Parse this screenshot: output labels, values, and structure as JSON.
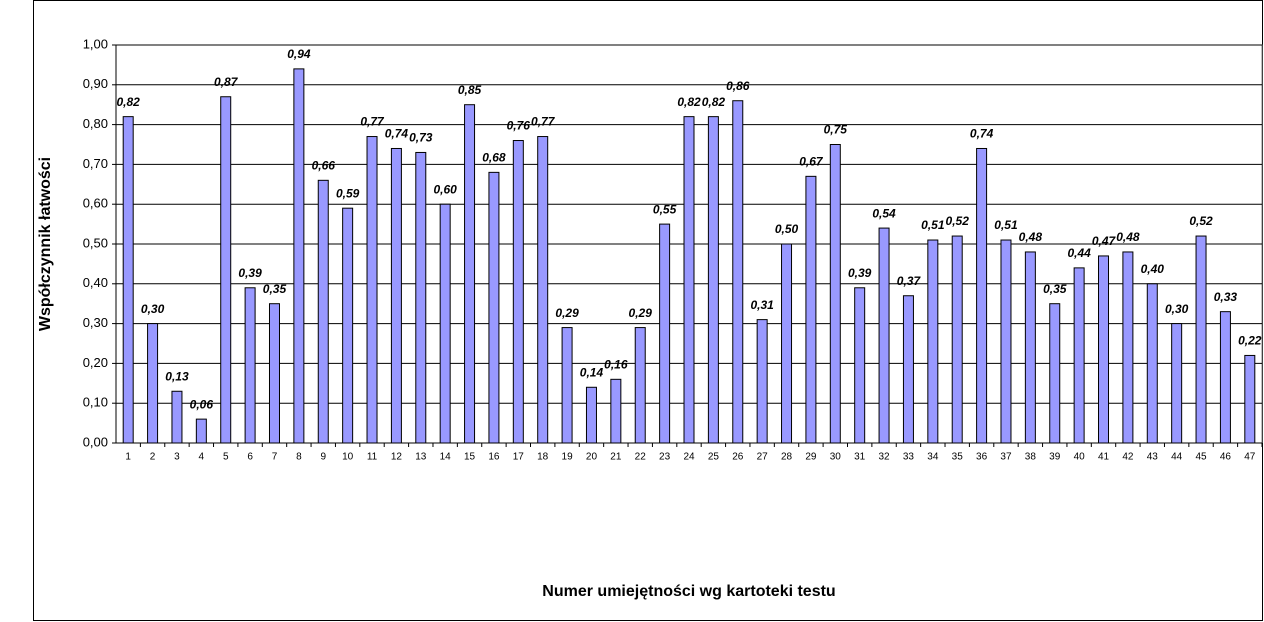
{
  "chart_data": {
    "type": "bar",
    "x_label": "Numer umiejętności wg kartoteki testu",
    "y_label": "Współczynnik łatwości",
    "categories": [
      "1",
      "2",
      "3",
      "4",
      "5",
      "6",
      "7",
      "8",
      "9",
      "10",
      "11",
      "12",
      "13",
      "14",
      "15",
      "16",
      "17",
      "18",
      "19",
      "20",
      "21",
      "22",
      "23",
      "24",
      "25",
      "26",
      "27",
      "28",
      "29",
      "30",
      "31",
      "32",
      "33",
      "34",
      "35",
      "36",
      "37",
      "38",
      "39",
      "40",
      "41",
      "42",
      "43",
      "44",
      "45",
      "46",
      "47"
    ],
    "values": [
      0.82,
      0.3,
      0.13,
      0.06,
      0.87,
      0.39,
      0.35,
      0.94,
      0.66,
      0.59,
      0.77,
      0.74,
      0.73,
      0.6,
      0.85,
      0.68,
      0.76,
      0.77,
      0.29,
      0.14,
      0.16,
      0.29,
      0.55,
      0.82,
      0.82,
      0.86,
      0.31,
      0.5,
      0.67,
      0.75,
      0.39,
      0.54,
      0.37,
      0.51,
      0.52,
      0.74,
      0.51,
      0.48,
      0.35,
      0.44,
      0.47,
      0.48,
      0.4,
      0.3,
      0.52,
      0.33,
      0.22
    ],
    "value_labels": [
      "0,82",
      "0,30",
      "0,13",
      "0,06",
      "0,87",
      "0,39",
      "0,35",
      "0,94",
      "0,66",
      "0,59",
      "0,77",
      "0,74",
      "0,73",
      "0,60",
      "0,85",
      "0,68",
      "0,76",
      "0,77",
      "0,29",
      "0,14",
      "0,16",
      "0,29",
      "0,55",
      "0,82",
      "0,82",
      "0,86",
      "0,31",
      "0,50",
      "0,67",
      "0,75",
      "0,39",
      "0,54",
      "0,37",
      "0,51",
      "0,52",
      "0,74",
      "0,51",
      "0,48",
      "0,35",
      "0,44",
      "0,47",
      "0,48",
      "0,40",
      "0,30",
      "0,52",
      "0,33",
      "0,22"
    ],
    "color": "#9999ff",
    "ylim": [
      0,
      1
    ],
    "yticks": [
      {
        "value": 0,
        "label": "0,00"
      },
      {
        "value": 0.1,
        "label": "0,10"
      },
      {
        "value": 0.2,
        "label": "0,20"
      },
      {
        "value": 0.3,
        "label": "0,30"
      },
      {
        "value": 0.4,
        "label": "0,40"
      },
      {
        "value": 0.5,
        "label": "0,50"
      },
      {
        "value": 0.6,
        "label": "0,60"
      },
      {
        "value": 0.7,
        "label": "0,70"
      },
      {
        "value": 0.8,
        "label": "0,80"
      },
      {
        "value": 0.9,
        "label": "0,90"
      },
      {
        "value": 1,
        "label": "1,00"
      }
    ],
    "grid": true
  }
}
